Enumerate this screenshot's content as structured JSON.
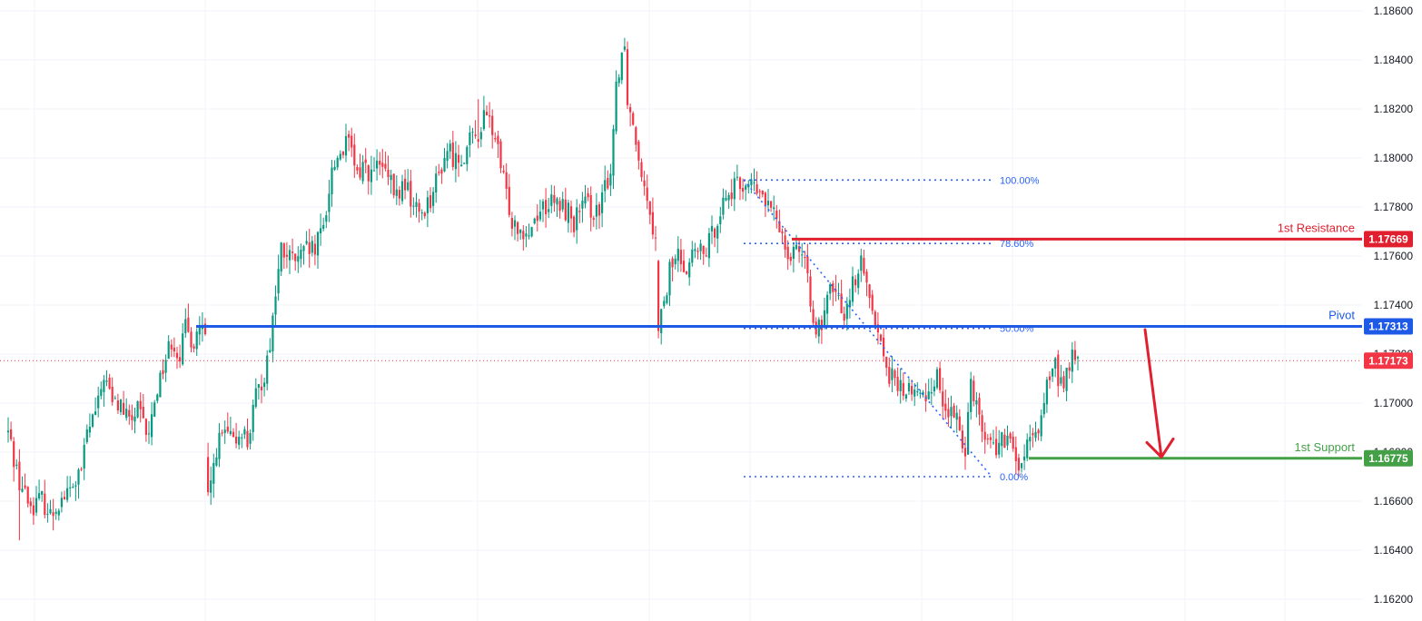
{
  "chart_data": {
    "type": "candlestick",
    "y_axis": {
      "range": [
        1.1615,
        1.1865
      ],
      "ticks": [
        "1.18600",
        "1.18400",
        "1.18200",
        "1.18000",
        "1.17800",
        "1.17600",
        "1.17400",
        "1.17200",
        "1.17000",
        "1.16800",
        "1.16600",
        "1.16400",
        "1.16200"
      ],
      "tick_values": [
        1.186,
        1.184,
        1.182,
        1.18,
        1.178,
        1.176,
        1.174,
        1.172,
        1.17,
        1.168,
        1.166,
        1.164,
        1.162
      ]
    },
    "grid": true,
    "current_price": {
      "value": 1.17173,
      "label": "1.17173",
      "color": "#f23645"
    },
    "levels": [
      {
        "name": "1st Resistance",
        "value": 1.17669,
        "label": "1.17669",
        "color": "#e0202e"
      },
      {
        "name": "Pivot",
        "value": 1.17313,
        "label": "1.17313",
        "color": "#1e5ae6"
      },
      {
        "name": "1st Support",
        "value": 1.16775,
        "label": "1.16775",
        "color": "#43a047"
      }
    ],
    "fibonacci": {
      "high": 1.1791,
      "low": 1.167,
      "levels": [
        {
          "label": "100.00%",
          "value": 1.1791
        },
        {
          "label": "78.60%",
          "value": 1.17651
        },
        {
          "label": "50.00%",
          "value": 1.17305
        },
        {
          "label": "0.00%",
          "value": 1.167
        }
      ],
      "color": "#2962ff"
    },
    "forecast_arrow": {
      "from": 1.173,
      "to": 1.1678,
      "color": "#e0202e"
    },
    "candle_colors": {
      "up": "#089981",
      "down": "#f23645"
    },
    "close_path": [
      [
        0,
        1.1688
      ],
      [
        4,
        1.1668
      ],
      [
        8,
        1.1658
      ],
      [
        12,
        1.1661
      ],
      [
        15,
        1.1654
      ],
      [
        18,
        1.166
      ],
      [
        22,
        1.1664
      ],
      [
        26,
        1.1672
      ],
      [
        28,
        1.1688
      ],
      [
        32,
        1.1699
      ],
      [
        34,
        1.1712
      ],
      [
        37,
        1.17
      ],
      [
        40,
        1.1699
      ],
      [
        43,
        1.1692
      ],
      [
        46,
        1.1697
      ],
      [
        49,
        1.1688
      ],
      [
        50,
        1.1686
      ],
      [
        52,
        1.1702
      ],
      [
        55,
        1.1715
      ],
      [
        58,
        1.1726
      ],
      [
        61,
        1.172
      ],
      [
        63,
        1.173
      ],
      [
        66,
        1.1725
      ],
      [
        68,
        1.1732
      ],
      [
        70,
        1.1726
      ],
      [
        71,
        1.166
      ],
      [
        72,
        1.1667
      ],
      [
        74,
        1.1682
      ],
      [
        77,
        1.1688
      ],
      [
        80,
        1.1683
      ],
      [
        83,
        1.169
      ],
      [
        85,
        1.1684
      ],
      [
        88,
        1.1702
      ],
      [
        91,
        1.1712
      ],
      [
        93,
        1.1725
      ],
      [
        95,
        1.1745
      ],
      [
        97,
        1.1762
      ],
      [
        100,
        1.1759
      ],
      [
        103,
        1.1758
      ],
      [
        106,
        1.1762
      ],
      [
        109,
        1.1762
      ],
      [
        112,
        1.1772
      ],
      [
        115,
        1.1795
      ],
      [
        118,
        1.1803
      ],
      [
        121,
        1.1806
      ],
      [
        124,
        1.1792
      ],
      [
        126,
        1.1798
      ],
      [
        129,
        1.1793
      ],
      [
        132,
        1.1797
      ],
      [
        135,
        1.1791
      ],
      [
        138,
        1.1784
      ],
      [
        141,
        1.179
      ],
      [
        144,
        1.178
      ],
      [
        147,
        1.1778
      ],
      [
        150,
        1.1784
      ],
      [
        153,
        1.1793
      ],
      [
        156,
        1.1804
      ],
      [
        159,
        1.1799
      ],
      [
        162,
        1.1802
      ],
      [
        165,
        1.1808
      ],
      [
        167,
        1.181
      ],
      [
        169,
        1.1816
      ],
      [
        171,
        1.1815
      ],
      [
        173,
        1.1808
      ],
      [
        176,
        1.179
      ],
      [
        179,
        1.1775
      ],
      [
        182,
        1.1772
      ],
      [
        185,
        1.177
      ],
      [
        188,
        1.1778
      ],
      [
        191,
        1.1781
      ],
      [
        194,
        1.1781
      ],
      [
        197,
        1.178
      ],
      [
        199,
        1.1778
      ],
      [
        201,
        1.1774
      ],
      [
        204,
        1.178
      ],
      [
        207,
        1.178
      ],
      [
        210,
        1.1776
      ],
      [
        212,
        1.1788
      ],
      [
        214,
        1.1795
      ],
      [
        216,
        1.183
      ],
      [
        218,
        1.1844
      ],
      [
        219,
        1.1845
      ],
      [
        220,
        1.1825
      ],
      [
        223,
        1.1808
      ],
      [
        226,
        1.179
      ],
      [
        228,
        1.178
      ],
      [
        230,
        1.1765
      ],
      [
        231,
        1.1733
      ],
      [
        233,
        1.1738
      ],
      [
        235,
        1.1755
      ],
      [
        238,
        1.176
      ],
      [
        241,
        1.1756
      ],
      [
        244,
        1.1762
      ],
      [
        247,
        1.176
      ],
      [
        250,
        1.1768
      ],
      [
        253,
        1.178
      ],
      [
        256,
        1.1786
      ],
      [
        259,
        1.1788
      ],
      [
        262,
        1.179
      ],
      [
        264,
        1.1789
      ],
      [
        266,
        1.1786
      ],
      [
        268,
        1.1784
      ],
      [
        271,
        1.1778
      ],
      [
        274,
        1.1773
      ],
      [
        276,
        1.1766
      ],
      [
        278,
        1.176
      ],
      [
        280,
        1.1767
      ],
      [
        283,
        1.1755
      ],
      [
        285,
        1.1742
      ],
      [
        287,
        1.1732
      ],
      [
        289,
        1.1728
      ],
      [
        291,
        1.1742
      ],
      [
        293,
        1.1748
      ],
      [
        295,
        1.1741
      ],
      [
        297,
        1.1738
      ],
      [
        299,
        1.1745
      ],
      [
        301,
        1.1752
      ],
      [
        303,
        1.1756
      ],
      [
        305,
        1.1748
      ],
      [
        307,
        1.1742
      ],
      [
        309,
        1.1728
      ],
      [
        311,
        1.172
      ],
      [
        313,
        1.1712
      ],
      [
        315,
        1.1708
      ],
      [
        318,
        1.1705
      ],
      [
        321,
        1.1705
      ],
      [
        324,
        1.1702
      ],
      [
        327,
        1.1705
      ],
      [
        330,
        1.1712
      ],
      [
        332,
        1.17
      ],
      [
        335,
        1.1695
      ],
      [
        338,
        1.169
      ],
      [
        340,
        1.1682
      ],
      [
        342,
        1.171
      ],
      [
        344,
        1.17
      ],
      [
        346,
        1.169
      ],
      [
        349,
        1.1683
      ],
      [
        352,
        1.1683
      ],
      [
        355,
        1.1685
      ],
      [
        358,
        1.1676
      ],
      [
        360,
        1.1675
      ],
      [
        362,
        1.1682
      ],
      [
        364,
        1.1684
      ],
      [
        366,
        1.169
      ],
      [
        368,
        1.1702
      ],
      [
        370,
        1.1712
      ],
      [
        372,
        1.1714
      ],
      [
        374,
        1.1708
      ],
      [
        376,
        1.1712
      ],
      [
        378,
        1.1718
      ],
      [
        380,
        1.1717
      ]
    ],
    "seed": 42
  }
}
